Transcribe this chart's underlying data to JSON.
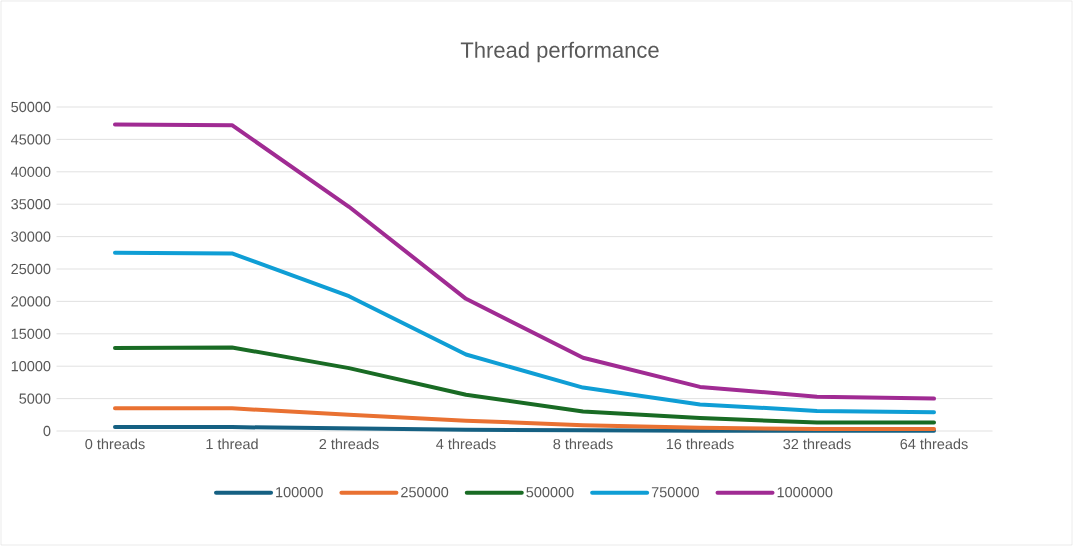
{
  "chart_data": {
    "type": "line",
    "title": "Thread performance",
    "categories": [
      "0 threads",
      "1 thread",
      "2 threads",
      "4 threads",
      "8 threads",
      "16 threads",
      "32 threads",
      "64 threads"
    ],
    "series": [
      {
        "name": "100000",
        "color": "#156082",
        "values": [
          600,
          600,
          400,
          200,
          100,
          50,
          30,
          30
        ]
      },
      {
        "name": "250000",
        "color": "#e97132",
        "values": [
          3500,
          3500,
          2500,
          1600,
          900,
          500,
          300,
          300
        ]
      },
      {
        "name": "500000",
        "color": "#196b24",
        "values": [
          12800,
          12900,
          9700,
          5600,
          3000,
          2000,
          1300,
          1300
        ]
      },
      {
        "name": "750000",
        "color": "#0f9ed5",
        "values": [
          27500,
          27400,
          20800,
          11800,
          6700,
          4100,
          3100,
          2900
        ]
      },
      {
        "name": "1000000",
        "color": "#a02b93",
        "values": [
          47300,
          47200,
          34600,
          20400,
          11300,
          6800,
          5300,
          5000
        ]
      }
    ],
    "ylim": [
      0,
      50000
    ],
    "yticks": [
      0,
      5000,
      10000,
      15000,
      20000,
      25000,
      30000,
      35000,
      40000,
      45000,
      50000
    ],
    "grid": "y",
    "legend": "bottom",
    "marker": "none",
    "line_style": "solid"
  }
}
